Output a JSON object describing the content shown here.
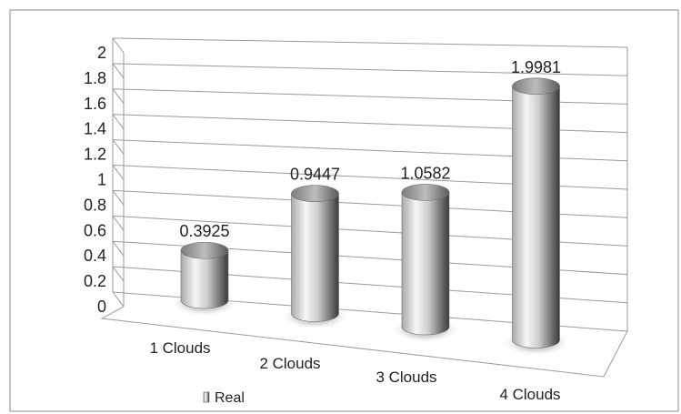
{
  "chart_data": {
    "type": "bar",
    "title": "",
    "xlabel": "",
    "ylabel": "",
    "categories": [
      "1 Clouds",
      "2 Clouds",
      "3 Clouds",
      "4 Clouds"
    ],
    "series": [
      {
        "name": "Real",
        "values": [
          0.3925,
          0.9447,
          1.0582,
          1.9981
        ]
      }
    ],
    "data_labels": [
      "0.3925",
      "0.9447",
      "1.0582",
      "1.9981"
    ],
    "y_ticks": [
      "0",
      "0.2",
      "0.4",
      "0.6",
      "0.8",
      "1",
      "1.2",
      "1.4",
      "1.6",
      "1.8",
      "2"
    ],
    "ylim": [
      0,
      2
    ],
    "grid": true,
    "legend_position": "bottom-left",
    "style": "3d-cylinder"
  }
}
